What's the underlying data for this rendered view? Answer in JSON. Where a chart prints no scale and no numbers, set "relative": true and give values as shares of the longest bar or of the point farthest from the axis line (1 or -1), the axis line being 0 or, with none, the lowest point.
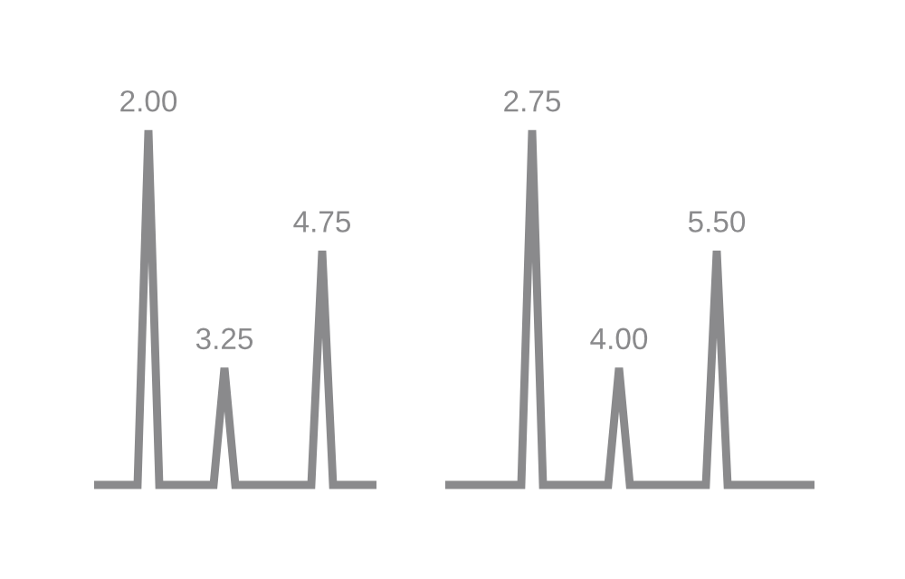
{
  "chart_data": [
    {
      "type": "line",
      "relative": true,
      "line_style": "solid",
      "categories": [
        null,
        null,
        null,
        null,
        null,
        null,
        null,
        null,
        null,
        null,
        null,
        null,
        null,
        null,
        null,
        null,
        null,
        null,
        null,
        null,
        null,
        null,
        null,
        null,
        null,
        null,
        null
      ],
      "series": [
        {
          "color": "#8a8a8c",
          "values": [
            0,
            0,
            0,
            0,
            0,
            1,
            0,
            0,
            0,
            0,
            0,
            0,
            0.33,
            0,
            0,
            0,
            0,
            0,
            0,
            0,
            0,
            0.66,
            0,
            0,
            0,
            0,
            0
          ]
        }
      ],
      "annotations": [
        {
          "text": "2.00",
          "y": 1
        },
        {
          "text": "3.25",
          "y": 0.33
        },
        {
          "text": "4.75",
          "y": 0.66
        }
      ]
    },
    {
      "type": "line",
      "relative": true,
      "line_style": "solid",
      "categories": [
        null,
        null,
        null,
        null,
        null,
        null,
        null,
        null,
        null,
        null,
        null,
        null,
        null,
        null,
        null,
        null,
        null,
        null,
        null,
        null,
        null,
        null,
        null,
        null,
        null,
        null,
        null,
        null,
        null,
        null,
        null,
        null,
        null,
        null,
        null
      ],
      "series": [
        {
          "color": "#8a8a8c",
          "values": [
            0,
            0,
            0,
            0,
            0,
            0,
            0,
            0,
            1,
            0,
            0,
            0,
            0,
            0,
            0,
            0,
            0.33,
            0,
            0,
            0,
            0,
            0,
            0,
            0,
            0,
            0.66,
            0,
            0,
            0,
            0,
            0,
            0,
            0,
            0,
            0
          ]
        }
      ],
      "annotations": [
        {
          "text": "2.75",
          "y": 1
        },
        {
          "text": "4.00",
          "y": 0.33
        },
        {
          "text": "5.50",
          "y": 0.66
        }
      ]
    }
  ]
}
